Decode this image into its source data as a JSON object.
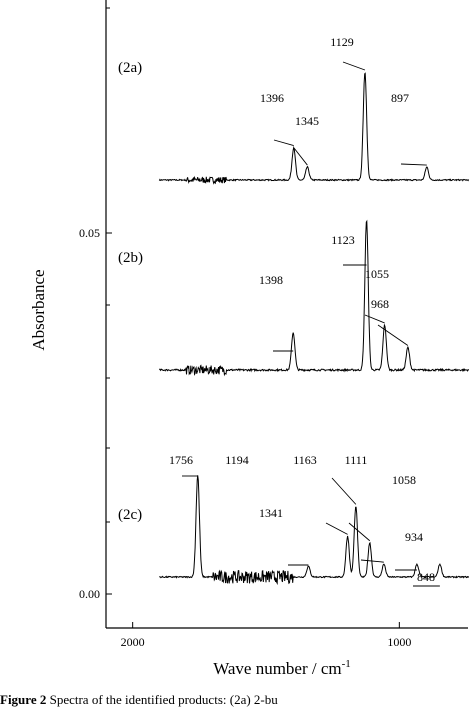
{
  "chart_data": {
    "type": "line",
    "title": "",
    "ylabel": "Absorbance",
    "xlabel_main": "Wave number / cm",
    "xlabel_sup": "-1",
    "x_reversed": true,
    "xlim": [
      2100,
      720
    ],
    "x_ticks": [
      {
        "value": 2000,
        "label": "2000"
      },
      {
        "value": 1000,
        "label": "1000"
      }
    ],
    "y_ticks": [
      {
        "label": "0.05"
      },
      {
        "label": "0.00"
      }
    ],
    "series": [
      {
        "name": "(2a)",
        "peaks": [
          {
            "x": 1396,
            "label": "1396",
            "h": 0.3
          },
          {
            "x": 1345,
            "label": "1345",
            "h": 0.12
          },
          {
            "x": 1129,
            "label": "1129",
            "h": 1.0
          },
          {
            "x": 897,
            "label": "897",
            "h": 0.12
          }
        ],
        "noise_region": [
          1800,
          1650
        ]
      },
      {
        "name": "(2b)",
        "peaks": [
          {
            "x": 1398,
            "label": "1398",
            "h": 0.25
          },
          {
            "x": 1123,
            "label": "1123",
            "h": 1.0
          },
          {
            "x": 1055,
            "label": "1055",
            "h": 0.3
          },
          {
            "x": 968,
            "label": "968",
            "h": 0.15
          }
        ],
        "noise_region": [
          1800,
          1650
        ]
      },
      {
        "name": "(2c)",
        "peaks": [
          {
            "x": 1756,
            "label": "1756",
            "h": 0.95
          },
          {
            "x": 1341,
            "label": "1341",
            "h": 0.1
          },
          {
            "x": 1194,
            "label": "1194",
            "h": 0.38
          },
          {
            "x": 1163,
            "label": "1163",
            "h": 0.66
          },
          {
            "x": 1111,
            "label": "1111",
            "h": 0.32
          },
          {
            "x": 1058,
            "label": "1058",
            "h": 0.12
          },
          {
            "x": 934,
            "label": "934",
            "h": 0.12
          },
          {
            "x": 848,
            "label": "848",
            "h": 0.12
          }
        ],
        "noise_region": [
          1700,
          1400
        ]
      }
    ]
  },
  "caption": {
    "prefix": "Figure 2",
    "text": "  Spectra of the identified products: (2a) 2-bu"
  }
}
